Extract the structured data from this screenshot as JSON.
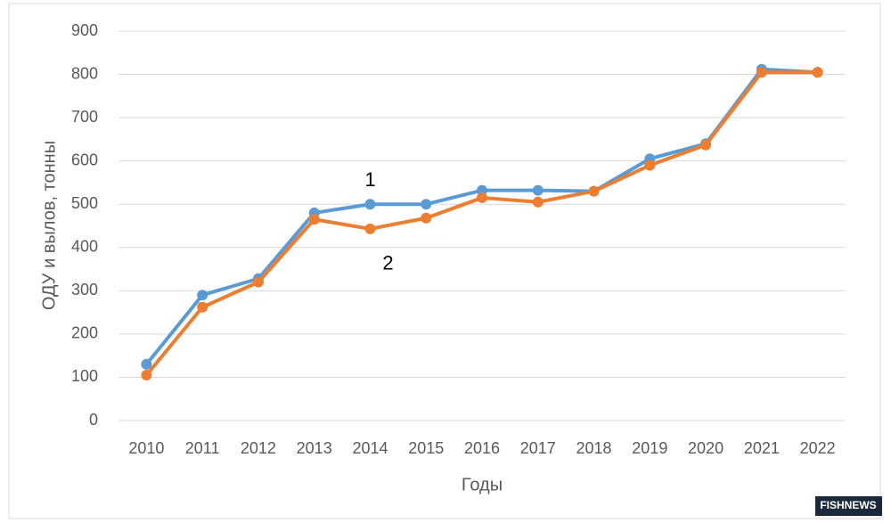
{
  "chart_data": {
    "type": "line",
    "x_label": "Годы",
    "y_label": "ОДУ и вылов, тонны",
    "categories": [
      "2010",
      "2011",
      "2012",
      "2013",
      "2014",
      "2015",
      "2016",
      "2017",
      "2018",
      "2019",
      "2020",
      "2021",
      "2022"
    ],
    "series": [
      {
        "name": "1",
        "color": "#5b9bd5",
        "values": [
          130,
          290,
          328,
          480,
          500,
          500,
          532,
          532,
          530,
          605,
          640,
          812,
          805
        ]
      },
      {
        "name": "2",
        "color": "#ed7d31",
        "values": [
          105,
          262,
          320,
          465,
          443,
          468,
          515,
          505,
          530,
          590,
          637,
          805,
          805
        ]
      }
    ],
    "ylim": [
      0,
      900
    ],
    "yticks": [
      0,
      100,
      200,
      300,
      400,
      500,
      600,
      700,
      800,
      900
    ],
    "grid": true,
    "watermark": "FISHNEWS"
  }
}
